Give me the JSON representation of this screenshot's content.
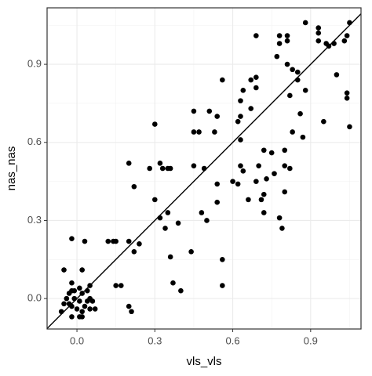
{
  "chart_data": {
    "type": "scatter",
    "x_label": "vls_vls",
    "y_label": "nas_nas",
    "x": [
      -0.02,
      0.03,
      -0.05,
      -0.02,
      0.02,
      -0.06,
      -0.04,
      -0.02,
      -0.01,
      0.01,
      0.02,
      0.04,
      0.05,
      -0.03,
      -0.02,
      0.0,
      0.02,
      0.03,
      0.05,
      0.06,
      -0.02,
      0.01,
      0.02,
      -0.01,
      0.01,
      0.04,
      0.07,
      -0.03,
      -0.05,
      0.05,
      0.12,
      0.14,
      0.15,
      0.15,
      0.17,
      0.2,
      0.2,
      0.22,
      0.2,
      0.21,
      0.24,
      0.22,
      0.3,
      0.28,
      0.3,
      0.32,
      0.33,
      0.35,
      0.36,
      0.32,
      0.34,
      0.35,
      0.36,
      0.37,
      0.4,
      0.39,
      0.44,
      0.45,
      0.45,
      0.47,
      0.45,
      0.49,
      0.48,
      0.5,
      0.51,
      0.54,
      0.53,
      0.54,
      0.54,
      0.56,
      0.56,
      0.56,
      0.6,
      0.62,
      0.62,
      0.63,
      0.64,
      0.63,
      0.63,
      0.63,
      0.64,
      0.66,
      0.67,
      0.67,
      0.69,
      0.69,
      0.69,
      0.69,
      0.7,
      0.71,
      0.72,
      0.72,
      0.73,
      0.72,
      0.75,
      0.76,
      0.77,
      0.78,
      0.78,
      0.78,
      0.79,
      0.8,
      0.8,
      0.8,
      0.81,
      0.81,
      0.81,
      0.82,
      0.82,
      0.83,
      0.83,
      0.85,
      0.85,
      0.86,
      0.87,
      0.88,
      0.88,
      0.93,
      0.93,
      0.93,
      0.95,
      0.96,
      0.97,
      0.99,
      1.0,
      1.03,
      1.04,
      1.04,
      1.04,
      1.05,
      1.05
    ],
    "values": [
      0.23,
      0.22,
      0.11,
      0.06,
      0.11,
      -0.05,
      0.0,
      0.03,
      0.03,
      0.04,
      0.02,
      0.03,
      0.0,
      -0.02,
      -0.03,
      -0.04,
      -0.05,
      -0.03,
      -0.04,
      -0.01,
      -0.07,
      -0.07,
      -0.07,
      0.0,
      -0.01,
      -0.01,
      -0.04,
      0.02,
      -0.02,
      0.05,
      0.22,
      0.22,
      0.22,
      0.05,
      0.05,
      0.22,
      0.52,
      0.43,
      -0.03,
      -0.05,
      0.21,
      0.18,
      0.67,
      0.5,
      0.38,
      0.52,
      0.5,
      0.5,
      0.5,
      0.31,
      0.27,
      0.33,
      0.16,
      0.06,
      0.03,
      0.29,
      0.18,
      0.72,
      0.64,
      0.64,
      0.51,
      0.5,
      0.33,
      0.3,
      0.72,
      0.7,
      0.64,
      0.44,
      0.37,
      0.84,
      0.15,
      0.05,
      0.45,
      0.44,
      0.68,
      0.7,
      0.8,
      0.76,
      0.61,
      0.51,
      0.49,
      0.38,
      0.84,
      0.73,
      1.01,
      0.81,
      0.85,
      0.45,
      0.51,
      0.38,
      0.57,
      0.4,
      0.46,
      0.33,
      0.56,
      0.48,
      0.93,
      0.31,
      0.98,
      1.01,
      0.27,
      0.51,
      0.57,
      0.41,
      1.01,
      0.99,
      0.9,
      0.78,
      0.5,
      0.88,
      0.64,
      0.84,
      0.87,
      0.71,
      0.62,
      0.8,
      1.06,
      1.04,
      1.02,
      0.99,
      0.68,
      0.98,
      0.97,
      0.98,
      0.86,
      0.99,
      0.79,
      0.77,
      1.01,
      1.06,
      0.66
    ],
    "color": "#000000",
    "xlim": [
      -0.115,
      1.094
    ],
    "ylim": [
      -0.117,
      1.117
    ],
    "xticks": [
      {
        "value": 0,
        "label": "0.0"
      },
      0.3,
      0.6,
      0.9
    ],
    "yticks": [
      {
        "value": 0,
        "label": "0.0"
      },
      0.3,
      0.6,
      0.9
    ],
    "grid": true,
    "identity_line": true
  }
}
